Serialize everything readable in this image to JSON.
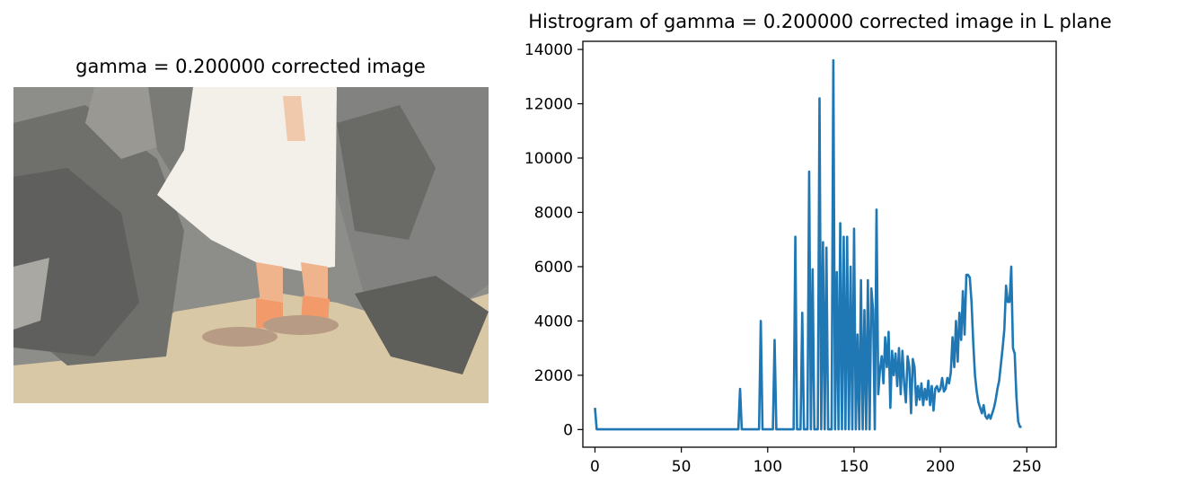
{
  "image_panel": {
    "title": "gamma = 0.200000 corrected image",
    "colors": {
      "rock": "#6f6f6c",
      "rock_light": "#a9a8a3",
      "sand": "#d9c8a6",
      "skirt": "#f3efe9",
      "skin": "#f0b48d",
      "sock": "#f39a6a"
    }
  },
  "chart_data": {
    "type": "line",
    "title": "Histrogram of gamma = 0.200000 corrected image in L plane",
    "xlabel": "",
    "ylabel": "",
    "xlim": [
      -7,
      267
    ],
    "ylim": [
      -650,
      14300
    ],
    "x_ticks": [
      0,
      50,
      100,
      150,
      200,
      250
    ],
    "y_ticks": [
      0,
      2000,
      4000,
      6000,
      8000,
      10000,
      12000,
      14000
    ],
    "series": [
      {
        "color": "#1f77b4",
        "points": [
          [
            0,
            800
          ],
          [
            1,
            10
          ],
          [
            83,
            10
          ],
          [
            84,
            1500
          ],
          [
            85,
            10
          ],
          [
            95,
            10
          ],
          [
            96,
            4000
          ],
          [
            97,
            10
          ],
          [
            103,
            10
          ],
          [
            104,
            3300
          ],
          [
            105,
            10
          ],
          [
            115,
            10
          ],
          [
            116,
            7100
          ],
          [
            117,
            10
          ],
          [
            119,
            10
          ],
          [
            120,
            4300
          ],
          [
            121,
            10
          ],
          [
            123,
            10
          ],
          [
            124,
            9500
          ],
          [
            125,
            10
          ],
          [
            126,
            5900
          ],
          [
            127,
            10
          ],
          [
            129,
            10
          ],
          [
            130,
            12200
          ],
          [
            131,
            10
          ],
          [
            132,
            6900
          ],
          [
            133,
            10
          ],
          [
            134,
            6700
          ],
          [
            135,
            10
          ],
          [
            137,
            10
          ],
          [
            138,
            13600
          ],
          [
            139,
            10
          ],
          [
            140,
            5800
          ],
          [
            141,
            10
          ],
          [
            142,
            7600
          ],
          [
            143,
            10
          ],
          [
            144,
            7100
          ],
          [
            145,
            10
          ],
          [
            146,
            7100
          ],
          [
            147,
            10
          ],
          [
            148,
            6000
          ],
          [
            149,
            10
          ],
          [
            150,
            7400
          ],
          [
            151,
            10
          ],
          [
            152,
            3500
          ],
          [
            153,
            10
          ],
          [
            154,
            5500
          ],
          [
            155,
            10
          ],
          [
            156,
            4400
          ],
          [
            157,
            10
          ],
          [
            158,
            5500
          ],
          [
            159,
            10
          ],
          [
            160,
            5200
          ],
          [
            161,
            4400
          ],
          [
            162,
            10
          ],
          [
            163,
            8100
          ],
          [
            164,
            1300
          ],
          [
            165,
            2200
          ],
          [
            166,
            2700
          ],
          [
            167,
            1700
          ],
          [
            168,
            3400
          ],
          [
            169,
            2300
          ],
          [
            170,
            3600
          ],
          [
            171,
            800
          ],
          [
            172,
            2900
          ],
          [
            173,
            2000
          ],
          [
            174,
            2800
          ],
          [
            175,
            1600
          ],
          [
            176,
            3000
          ],
          [
            177,
            1300
          ],
          [
            178,
            2900
          ],
          [
            179,
            1700
          ],
          [
            180,
            1000
          ],
          [
            181,
            2700
          ],
          [
            182,
            2300
          ],
          [
            183,
            600
          ],
          [
            184,
            2600
          ],
          [
            185,
            2300
          ],
          [
            186,
            900
          ],
          [
            187,
            1600
          ],
          [
            188,
            1100
          ],
          [
            189,
            1700
          ],
          [
            190,
            900
          ],
          [
            191,
            1500
          ],
          [
            192,
            1100
          ],
          [
            193,
            1800
          ],
          [
            194,
            900
          ],
          [
            195,
            1600
          ],
          [
            196,
            700
          ],
          [
            197,
            1500
          ],
          [
            198,
            1600
          ],
          [
            199,
            1400
          ],
          [
            200,
            1500
          ],
          [
            201,
            1900
          ],
          [
            202,
            1400
          ],
          [
            203,
            1500
          ],
          [
            204,
            1900
          ],
          [
            205,
            1700
          ],
          [
            206,
            2100
          ],
          [
            207,
            3400
          ],
          [
            208,
            2300
          ],
          [
            209,
            4000
          ],
          [
            210,
            2500
          ],
          [
            211,
            4300
          ],
          [
            212,
            3300
          ],
          [
            213,
            5100
          ],
          [
            214,
            3500
          ],
          [
            215,
            5700
          ],
          [
            216,
            5700
          ],
          [
            217,
            5600
          ],
          [
            218,
            4700
          ],
          [
            219,
            3200
          ],
          [
            220,
            2000
          ],
          [
            221,
            1400
          ],
          [
            222,
            1000
          ],
          [
            223,
            800
          ],
          [
            224,
            600
          ],
          [
            225,
            900
          ],
          [
            226,
            500
          ],
          [
            227,
            400
          ],
          [
            228,
            550
          ],
          [
            229,
            400
          ],
          [
            230,
            600
          ],
          [
            231,
            800
          ],
          [
            232,
            1100
          ],
          [
            233,
            1500
          ],
          [
            234,
            1800
          ],
          [
            235,
            2400
          ],
          [
            236,
            3000
          ],
          [
            237,
            3700
          ],
          [
            238,
            5300
          ],
          [
            239,
            4700
          ],
          [
            240,
            4700
          ],
          [
            241,
            6000
          ],
          [
            242,
            3000
          ],
          [
            243,
            2800
          ],
          [
            244,
            1200
          ],
          [
            245,
            300
          ],
          [
            246,
            100
          ],
          [
            247,
            100
          ]
        ]
      }
    ],
    "grid": false,
    "legend": "none"
  }
}
